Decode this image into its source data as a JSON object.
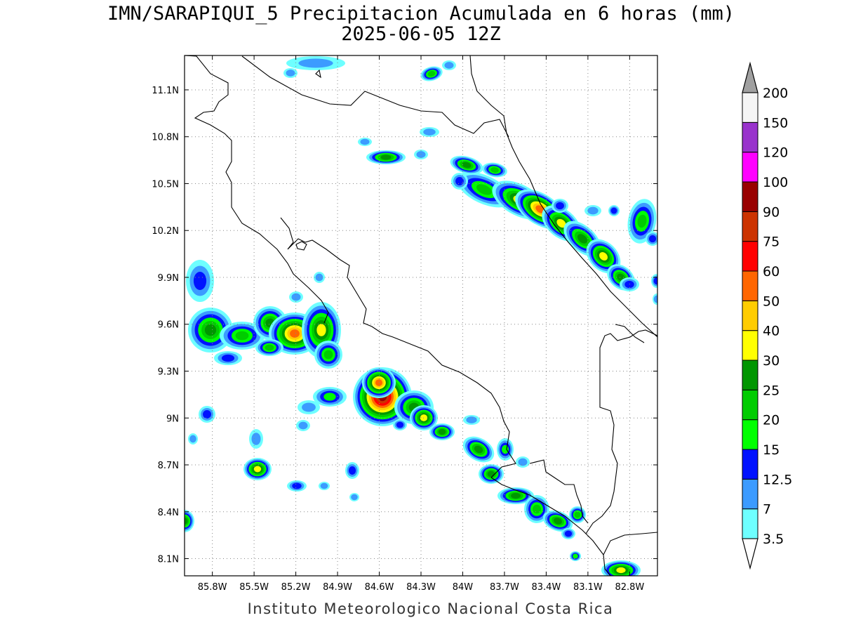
{
  "title": {
    "line1": "IMN/SARAPIQUI_5 Precipitacion Acumulada en 6 horas (mm)",
    "line2": "2025-06-05 12Z"
  },
  "credit": "Instituto Meteorologico Nacional Costa Rica",
  "map": {
    "lon_range": [
      -86.0,
      -82.6
    ],
    "lat_range": [
      7.99,
      11.32
    ],
    "lon_ticks": [
      {
        "value": -85.8,
        "label": "85.8W"
      },
      {
        "value": -85.5,
        "label": "85.5W"
      },
      {
        "value": -85.2,
        "label": "85.2W"
      },
      {
        "value": -84.9,
        "label": "84.9W"
      },
      {
        "value": -84.6,
        "label": "84.6W"
      },
      {
        "value": -84.3,
        "label": "84.3W"
      },
      {
        "value": -84.0,
        "label": "84W"
      },
      {
        "value": -83.7,
        "label": "83.7W"
      },
      {
        "value": -83.4,
        "label": "83.4W"
      },
      {
        "value": -83.1,
        "label": "83.1W"
      },
      {
        "value": -82.8,
        "label": "82.8W"
      }
    ],
    "lat_ticks": [
      {
        "value": 11.1,
        "label": "11.1N"
      },
      {
        "value": 10.8,
        "label": "10.8N"
      },
      {
        "value": 10.5,
        "label": "10.5N"
      },
      {
        "value": 10.2,
        "label": "10.2N"
      },
      {
        "value": 9.9,
        "label": "9.9N"
      },
      {
        "value": 9.6,
        "label": "9.6N"
      },
      {
        "value": 9.3,
        "label": "9.3N"
      },
      {
        "value": 9.0,
        "label": "9N"
      },
      {
        "value": 8.7,
        "label": "8.7N"
      },
      {
        "value": 8.4,
        "label": "8.4N"
      },
      {
        "value": 8.1,
        "label": "8.1N"
      }
    ],
    "grid": true,
    "colors": {
      "3.5": "#6effff",
      "7": "#3c9bff",
      "12.5": "#0012ff",
      "15": "#00ff00",
      "20": "#00cc00",
      "25": "#009600",
      "30": "#ffff00",
      "40": "#ffcc00",
      "50": "#ff6600",
      "60": "#ff0000",
      "75": "#cc3300",
      "90": "#990000",
      "100": "#ff00ff",
      "120": "#9933cc",
      "150": "#f5f5f5",
      "200": "#a0a0a0"
    }
  },
  "colorbar": {
    "units": "mm",
    "levels": [
      "3.5",
      "7",
      "12.5",
      "15",
      "20",
      "25",
      "30",
      "40",
      "50",
      "60",
      "75",
      "90",
      "100",
      "120",
      "150",
      "200"
    ],
    "colors": [
      "#6effff",
      "#3c9bff",
      "#0012ff",
      "#00ff00",
      "#00cc00",
      "#009600",
      "#ffff00",
      "#ffcc00",
      "#ff6600",
      "#ff0000",
      "#cc3300",
      "#990000",
      "#ff00ff",
      "#9933cc",
      "#f5f5f5",
      "#a0a0a0"
    ]
  }
}
